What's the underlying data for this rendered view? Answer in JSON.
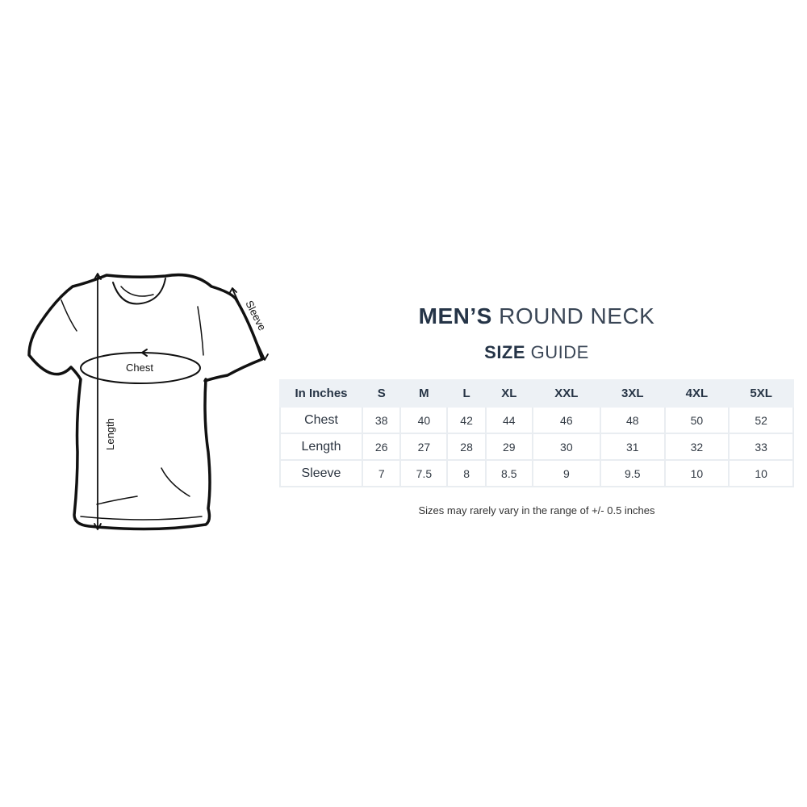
{
  "title": {
    "bold": "MEN’S",
    "light": "ROUND NECK"
  },
  "subtitle": {
    "bold": "SIZE",
    "light": "GUIDE"
  },
  "diagram_labels": {
    "chest": "Chest",
    "length": "Length",
    "sleeve": "Sleeve"
  },
  "table": {
    "headers": [
      "In Inches",
      "S",
      "M",
      "L",
      "XL",
      "XXL",
      "3XL",
      "4XL",
      "5XL"
    ],
    "rows": [
      {
        "label": "Chest",
        "values": [
          "38",
          "40",
          "42",
          "44",
          "46",
          "48",
          "50",
          "52"
        ]
      },
      {
        "label": "Length",
        "values": [
          "26",
          "27",
          "28",
          "29",
          "30",
          "31",
          "32",
          "33"
        ]
      },
      {
        "label": "Sleeve",
        "values": [
          "7",
          "7.5",
          "8",
          "8.5",
          "9",
          "9.5",
          "10",
          "10"
        ]
      }
    ]
  },
  "note": "Sizes may rarely vary in the range of +/- 0.5 inches",
  "colors": {
    "heading": "#253447",
    "header_bg": "#edf1f5",
    "border": "#e9edf1"
  }
}
